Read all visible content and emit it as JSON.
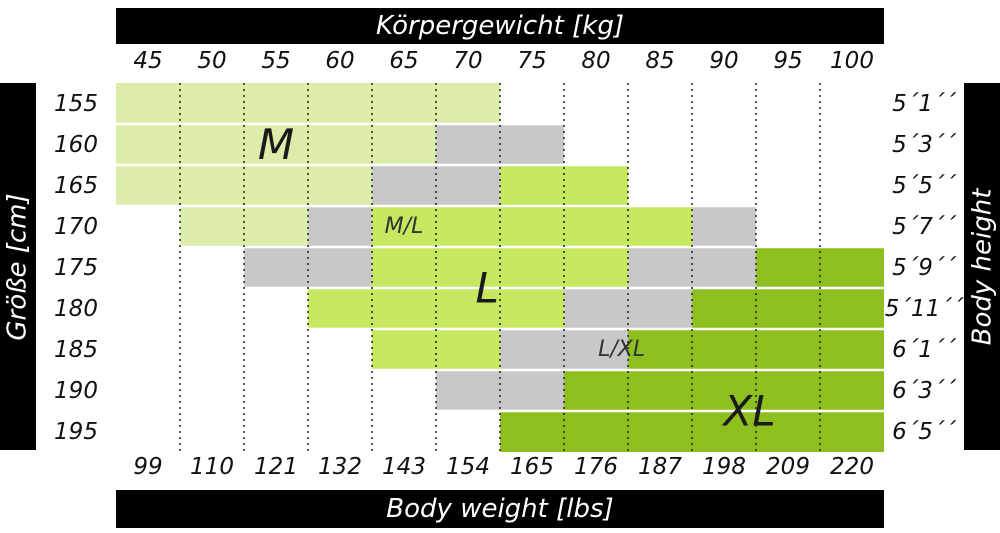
{
  "chart_data": {
    "type": "heatmap",
    "title": "Körpergewicht [kg]",
    "xlabel": "Body weight [lbs]",
    "ylabel": "Größe [cm]",
    "ylabel_right": "Body height",
    "x_kg": [
      "45",
      "50",
      "55",
      "60",
      "65",
      "70",
      "75",
      "80",
      "85",
      "90",
      "95",
      "100"
    ],
    "x_lbs": [
      "99",
      "110",
      "121",
      "132",
      "143",
      "154",
      "165",
      "176",
      "187",
      "198",
      "209",
      "220"
    ],
    "y_cm": [
      "155",
      "160",
      "165",
      "170",
      "175",
      "180",
      "185",
      "190",
      "195"
    ],
    "y_ft": [
      "5´1´´",
      "5´3´´",
      "5´5´´",
      "5´7´´",
      "5´9´´",
      "5´11´´",
      "6´1´´",
      "6´3´´",
      "6´5´´"
    ],
    "colors": {
      "M": "#dcedaa",
      "ML": "#c8c8c8",
      "L": "#c6e85e",
      "XL": "#8dbf1e"
    },
    "cells": [
      [
        "M",
        "M",
        "M",
        "M",
        "M",
        "M",
        "",
        "",
        "",
        "",
        "",
        ""
      ],
      [
        "M",
        "M",
        "M",
        "M",
        "M",
        "ML",
        "ML",
        "",
        "",
        "",
        "",
        ""
      ],
      [
        "M",
        "M",
        "M",
        "M",
        "ML",
        "ML",
        "L",
        "L",
        "",
        "",
        "",
        ""
      ],
      [
        "",
        "M",
        "M",
        "ML",
        "L",
        "L",
        "L",
        "L",
        "L",
        "ML",
        "",
        ""
      ],
      [
        "",
        "",
        "ML",
        "ML",
        "L",
        "L",
        "L",
        "L",
        "ML",
        "ML",
        "XL",
        "XL"
      ],
      [
        "",
        "",
        "",
        "L",
        "L",
        "L",
        "L",
        "ML",
        "ML",
        "XL",
        "XL",
        "XL"
      ],
      [
        "",
        "",
        "",
        "",
        "L",
        "L",
        "ML",
        "ML",
        "XL",
        "XL",
        "XL",
        "XL"
      ],
      [
        "",
        "",
        "",
        "",
        "",
        "ML",
        "ML",
        "XL",
        "XL",
        "XL",
        "XL",
        "XL"
      ],
      [
        "",
        "",
        "",
        "",
        "",
        "",
        "XL",
        "XL",
        "XL",
        "XL",
        "XL",
        "XL"
      ]
    ],
    "size_labels": [
      {
        "text": "M",
        "col": 2.5,
        "row": 1.5,
        "big": true
      },
      {
        "text": "M/L",
        "col": 4.5,
        "row": 3.5,
        "big": false
      },
      {
        "text": "L",
        "col": 5.8,
        "row": 5.0,
        "big": true
      },
      {
        "text": "L/XL",
        "col": 7.9,
        "row": 6.5,
        "big": false
      },
      {
        "text": "XL",
        "col": 9.9,
        "row": 8.0,
        "big": true
      }
    ]
  }
}
